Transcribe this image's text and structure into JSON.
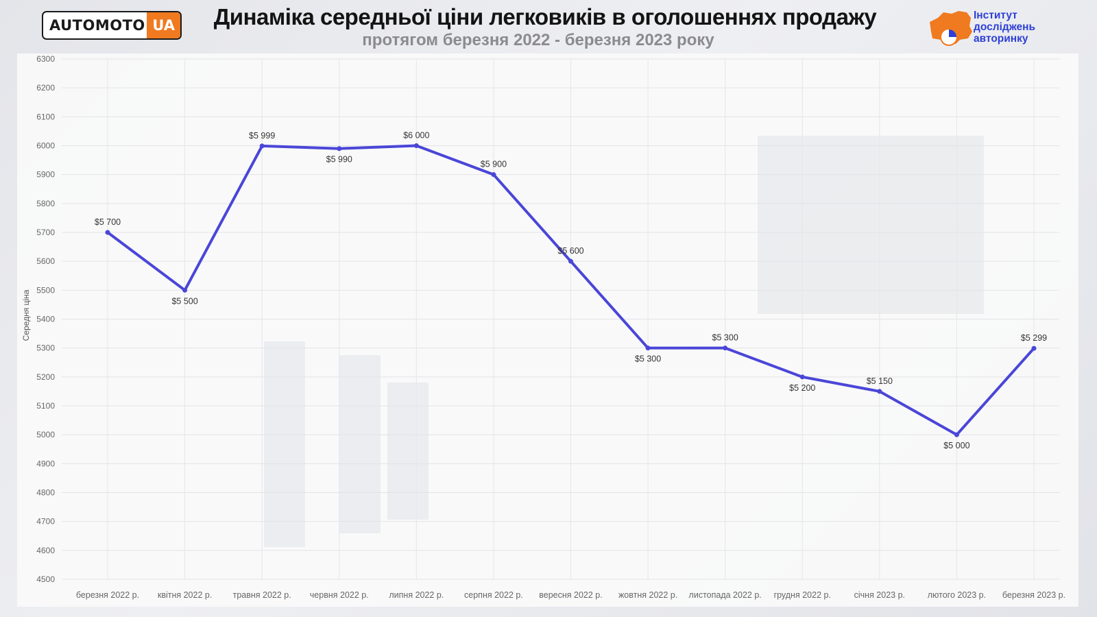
{
  "header": {
    "logo_left_main": "AUTOMOTO",
    "logo_left_accent": "UA",
    "title": "Динаміка середньої ціни легковиків в оголошеннях продажу",
    "subtitle": "протягом березня 2022 - березня 2023 року",
    "logo_right_lines": [
      "Інститут",
      "досліджень",
      "авторинку"
    ]
  },
  "colors": {
    "line": "#4a46d8",
    "logo_accent": "#f07a20",
    "logo_right_text": "#2d3fd6"
  },
  "chart_data": {
    "type": "line",
    "title": "Динаміка середньої ціни легковиків в оголошеннях продажу",
    "subtitle": "протягом березня 2022 - березня 2023 року",
    "xlabel": "",
    "ylabel": "Середня ціна",
    "ylim": [
      4500,
      6300
    ],
    "yticks": [
      4500,
      4600,
      4700,
      4800,
      4900,
      5000,
      5100,
      5200,
      5300,
      5400,
      5500,
      5600,
      5700,
      5800,
      5900,
      6000,
      6100,
      6200,
      6300
    ],
    "grid": true,
    "categories": [
      "березня 2022 р.",
      "квітня 2022 р.",
      "травня 2022 р.",
      "червня 2022 р.",
      "липня 2022 р.",
      "серпня 2022 р.",
      "вересня 2022 р.",
      "жовтня 2022 р.",
      "листопада 2022 р.",
      "грудня 2022 р.",
      "січня 2023 р.",
      "лютого 2023 р.",
      "березня 2023 р."
    ],
    "series": [
      {
        "values": [
          5700,
          5500,
          5999,
          5990,
          6000,
          5900,
          5600,
          5300,
          5300,
          5200,
          5150,
          5000,
          5299
        ],
        "labels": [
          "$5 700",
          "$5 500",
          "$5 999",
          "$5 990",
          "$6 000",
          "$5 900",
          "$5 600",
          "$5 300",
          "$5 300",
          "$5 200",
          "$5 150",
          "$5 000",
          "$5 299"
        ],
        "label_positions": [
          "above",
          "below",
          "above",
          "below",
          "above",
          "above",
          "above",
          "below",
          "above",
          "below",
          "above",
          "below",
          "above"
        ]
      }
    ]
  }
}
